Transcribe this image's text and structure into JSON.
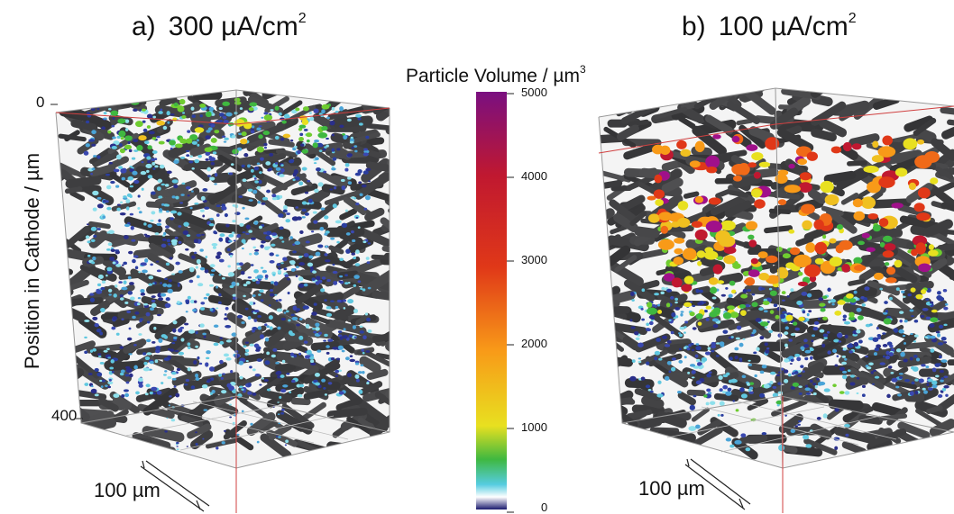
{
  "panels": [
    {
      "label": "a)",
      "value": "300 µA/cm",
      "exponent": "2"
    },
    {
      "label": "b)",
      "value": "100 µA/cm",
      "exponent": "2"
    }
  ],
  "colorbar": {
    "title": "Particle Volume / µm",
    "title_exponent": "3",
    "ticks": [
      "5000",
      "4000",
      "3000",
      "2000",
      "1000",
      "0"
    ],
    "range": [
      0,
      5000
    ],
    "colors": [
      "#1a1a6e",
      "#ffffff",
      "#55cce0",
      "#3fb840",
      "#e8e020",
      "#f89a18",
      "#e03818",
      "#c01830",
      "#7a0f80"
    ]
  },
  "y_axis": {
    "label": "Position in Cathode / µm",
    "ticks": [
      "0",
      "400"
    ]
  },
  "scale_bars": [
    {
      "text": "100 µm"
    },
    {
      "text": "100 µm"
    }
  ],
  "colors": {
    "matrix": "#3e3e40",
    "frame": "#999999",
    "red_edge": "#d04040"
  }
}
